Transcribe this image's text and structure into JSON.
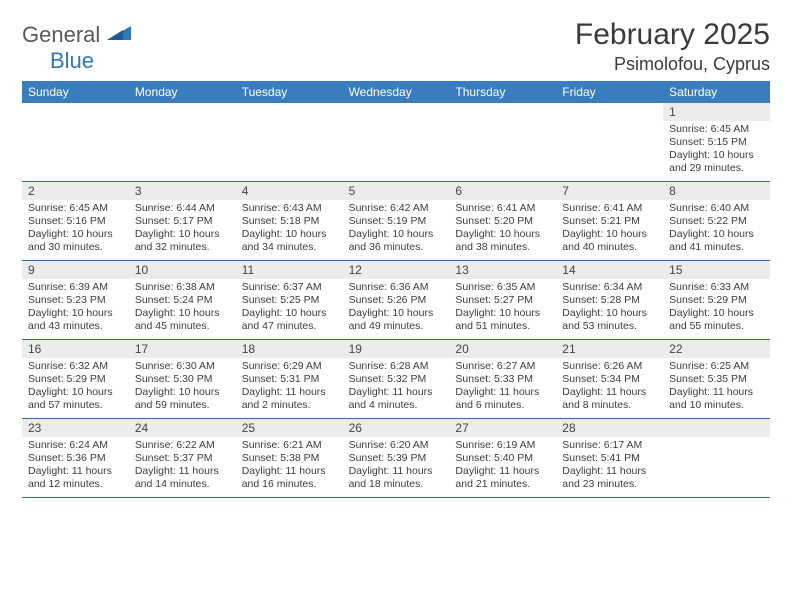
{
  "brand": {
    "general": "General",
    "blue": "Blue"
  },
  "title": "February 2025",
  "location": "Psimolofou, Cyprus",
  "colors": {
    "header_bg": "#3a7dbf",
    "header_text": "#ffffff",
    "daynum_bg": "#ececec",
    "week_divider": "#2f6aa5",
    "text": "#3b3b3b"
  },
  "day_headers": [
    "Sunday",
    "Monday",
    "Tuesday",
    "Wednesday",
    "Thursday",
    "Friday",
    "Saturday"
  ],
  "weeks": [
    [
      {
        "num": "",
        "sunrise": "",
        "sunset": "",
        "daylight": ""
      },
      {
        "num": "",
        "sunrise": "",
        "sunset": "",
        "daylight": ""
      },
      {
        "num": "",
        "sunrise": "",
        "sunset": "",
        "daylight": ""
      },
      {
        "num": "",
        "sunrise": "",
        "sunset": "",
        "daylight": ""
      },
      {
        "num": "",
        "sunrise": "",
        "sunset": "",
        "daylight": ""
      },
      {
        "num": "",
        "sunrise": "",
        "sunset": "",
        "daylight": ""
      },
      {
        "num": "1",
        "sunrise": "Sunrise: 6:45 AM",
        "sunset": "Sunset: 5:15 PM",
        "daylight": "Daylight: 10 hours and 29 minutes."
      }
    ],
    [
      {
        "num": "2",
        "sunrise": "Sunrise: 6:45 AM",
        "sunset": "Sunset: 5:16 PM",
        "daylight": "Daylight: 10 hours and 30 minutes."
      },
      {
        "num": "3",
        "sunrise": "Sunrise: 6:44 AM",
        "sunset": "Sunset: 5:17 PM",
        "daylight": "Daylight: 10 hours and 32 minutes."
      },
      {
        "num": "4",
        "sunrise": "Sunrise: 6:43 AM",
        "sunset": "Sunset: 5:18 PM",
        "daylight": "Daylight: 10 hours and 34 minutes."
      },
      {
        "num": "5",
        "sunrise": "Sunrise: 6:42 AM",
        "sunset": "Sunset: 5:19 PM",
        "daylight": "Daylight: 10 hours and 36 minutes."
      },
      {
        "num": "6",
        "sunrise": "Sunrise: 6:41 AM",
        "sunset": "Sunset: 5:20 PM",
        "daylight": "Daylight: 10 hours and 38 minutes."
      },
      {
        "num": "7",
        "sunrise": "Sunrise: 6:41 AM",
        "sunset": "Sunset: 5:21 PM",
        "daylight": "Daylight: 10 hours and 40 minutes."
      },
      {
        "num": "8",
        "sunrise": "Sunrise: 6:40 AM",
        "sunset": "Sunset: 5:22 PM",
        "daylight": "Daylight: 10 hours and 41 minutes."
      }
    ],
    [
      {
        "num": "9",
        "sunrise": "Sunrise: 6:39 AM",
        "sunset": "Sunset: 5:23 PM",
        "daylight": "Daylight: 10 hours and 43 minutes."
      },
      {
        "num": "10",
        "sunrise": "Sunrise: 6:38 AM",
        "sunset": "Sunset: 5:24 PM",
        "daylight": "Daylight: 10 hours and 45 minutes."
      },
      {
        "num": "11",
        "sunrise": "Sunrise: 6:37 AM",
        "sunset": "Sunset: 5:25 PM",
        "daylight": "Daylight: 10 hours and 47 minutes."
      },
      {
        "num": "12",
        "sunrise": "Sunrise: 6:36 AM",
        "sunset": "Sunset: 5:26 PM",
        "daylight": "Daylight: 10 hours and 49 minutes."
      },
      {
        "num": "13",
        "sunrise": "Sunrise: 6:35 AM",
        "sunset": "Sunset: 5:27 PM",
        "daylight": "Daylight: 10 hours and 51 minutes."
      },
      {
        "num": "14",
        "sunrise": "Sunrise: 6:34 AM",
        "sunset": "Sunset: 5:28 PM",
        "daylight": "Daylight: 10 hours and 53 minutes."
      },
      {
        "num": "15",
        "sunrise": "Sunrise: 6:33 AM",
        "sunset": "Sunset: 5:29 PM",
        "daylight": "Daylight: 10 hours and 55 minutes."
      }
    ],
    [
      {
        "num": "16",
        "sunrise": "Sunrise: 6:32 AM",
        "sunset": "Sunset: 5:29 PM",
        "daylight": "Daylight: 10 hours and 57 minutes."
      },
      {
        "num": "17",
        "sunrise": "Sunrise: 6:30 AM",
        "sunset": "Sunset: 5:30 PM",
        "daylight": "Daylight: 10 hours and 59 minutes."
      },
      {
        "num": "18",
        "sunrise": "Sunrise: 6:29 AM",
        "sunset": "Sunset: 5:31 PM",
        "daylight": "Daylight: 11 hours and 2 minutes."
      },
      {
        "num": "19",
        "sunrise": "Sunrise: 6:28 AM",
        "sunset": "Sunset: 5:32 PM",
        "daylight": "Daylight: 11 hours and 4 minutes."
      },
      {
        "num": "20",
        "sunrise": "Sunrise: 6:27 AM",
        "sunset": "Sunset: 5:33 PM",
        "daylight": "Daylight: 11 hours and 6 minutes."
      },
      {
        "num": "21",
        "sunrise": "Sunrise: 6:26 AM",
        "sunset": "Sunset: 5:34 PM",
        "daylight": "Daylight: 11 hours and 8 minutes."
      },
      {
        "num": "22",
        "sunrise": "Sunrise: 6:25 AM",
        "sunset": "Sunset: 5:35 PM",
        "daylight": "Daylight: 11 hours and 10 minutes."
      }
    ],
    [
      {
        "num": "23",
        "sunrise": "Sunrise: 6:24 AM",
        "sunset": "Sunset: 5:36 PM",
        "daylight": "Daylight: 11 hours and 12 minutes."
      },
      {
        "num": "24",
        "sunrise": "Sunrise: 6:22 AM",
        "sunset": "Sunset: 5:37 PM",
        "daylight": "Daylight: 11 hours and 14 minutes."
      },
      {
        "num": "25",
        "sunrise": "Sunrise: 6:21 AM",
        "sunset": "Sunset: 5:38 PM",
        "daylight": "Daylight: 11 hours and 16 minutes."
      },
      {
        "num": "26",
        "sunrise": "Sunrise: 6:20 AM",
        "sunset": "Sunset: 5:39 PM",
        "daylight": "Daylight: 11 hours and 18 minutes."
      },
      {
        "num": "27",
        "sunrise": "Sunrise: 6:19 AM",
        "sunset": "Sunset: 5:40 PM",
        "daylight": "Daylight: 11 hours and 21 minutes."
      },
      {
        "num": "28",
        "sunrise": "Sunrise: 6:17 AM",
        "sunset": "Sunset: 5:41 PM",
        "daylight": "Daylight: 11 hours and 23 minutes."
      },
      {
        "num": "",
        "sunrise": "",
        "sunset": "",
        "daylight": ""
      }
    ]
  ]
}
